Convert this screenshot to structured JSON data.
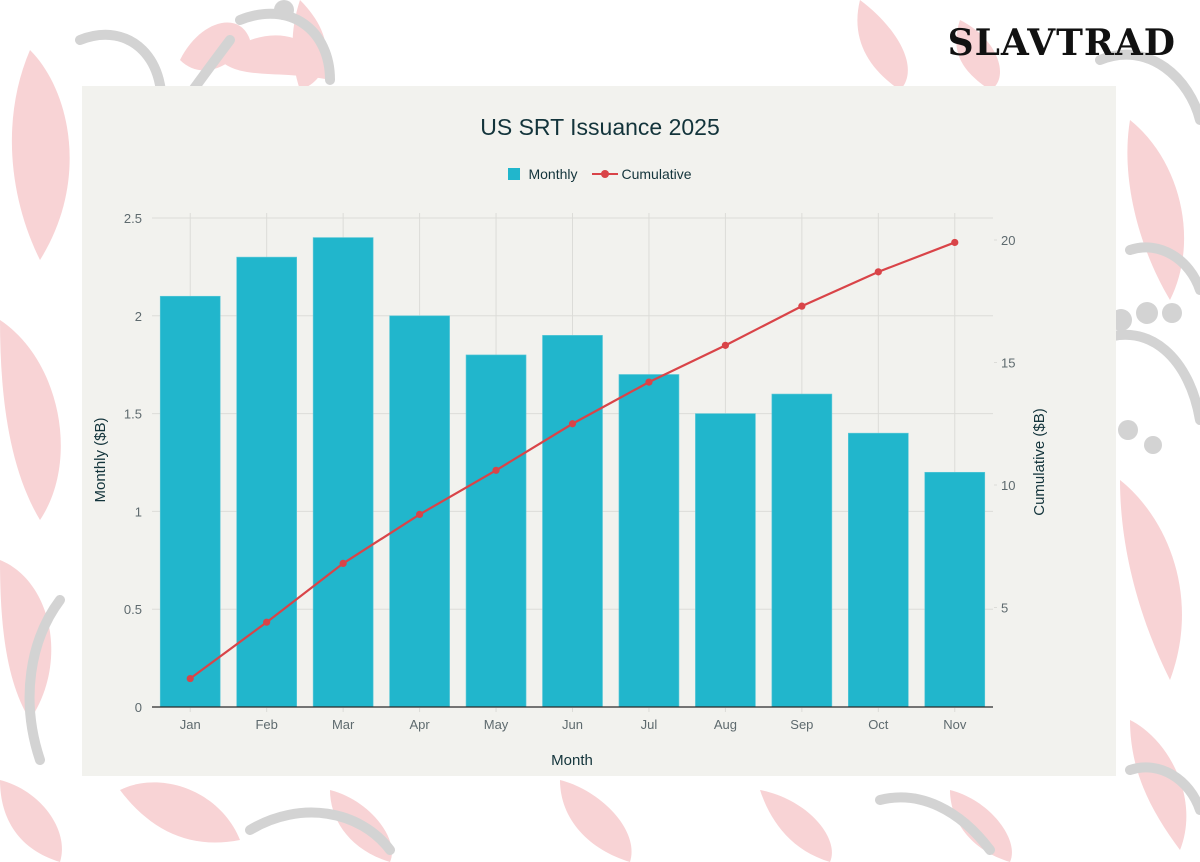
{
  "brand": {
    "name": "SLAVTRAD"
  },
  "colors": {
    "bar": "#21b6cc",
    "line": "#d94448",
    "card": "#f2f2ee",
    "text": "#13343b",
    "grid": "#dcdcd8",
    "petal_pink": "#f8d3d5",
    "petal_gray": "#d3d3d3"
  },
  "chart_data": {
    "type": "bar+line",
    "title": "US SRT Issuance 2025",
    "xlabel": "Month",
    "ylabel": "Monthly ($B)",
    "y2label": "Cumulative ($B)",
    "categories": [
      "Jan",
      "Feb",
      "Mar",
      "Apr",
      "May",
      "Jun",
      "Jul",
      "Aug",
      "Sep",
      "Oct",
      "Nov"
    ],
    "series": [
      {
        "name": "Monthly",
        "type": "bar",
        "axis": "left",
        "values": [
          2.1,
          2.3,
          2.4,
          2.0,
          1.8,
          1.9,
          1.7,
          1.5,
          1.6,
          1.4,
          1.2
        ]
      },
      {
        "name": "Cumulative",
        "type": "line",
        "axis": "right",
        "values": [
          2.1,
          4.4,
          6.8,
          8.8,
          10.6,
          12.5,
          14.2,
          15.7,
          17.3,
          18.7,
          19.9
        ]
      }
    ],
    "ylim": [
      0,
      2.5
    ],
    "y2lim": [
      0,
      20.2
    ],
    "yticks": [
      "0",
      "0.5",
      "1",
      "1.5",
      "2",
      "2.5"
    ],
    "y2ticks": [
      "5",
      "10",
      "15",
      "20"
    ],
    "legend": [
      "Monthly",
      "Cumulative"
    ],
    "legend_position": "top",
    "grid": true
  }
}
